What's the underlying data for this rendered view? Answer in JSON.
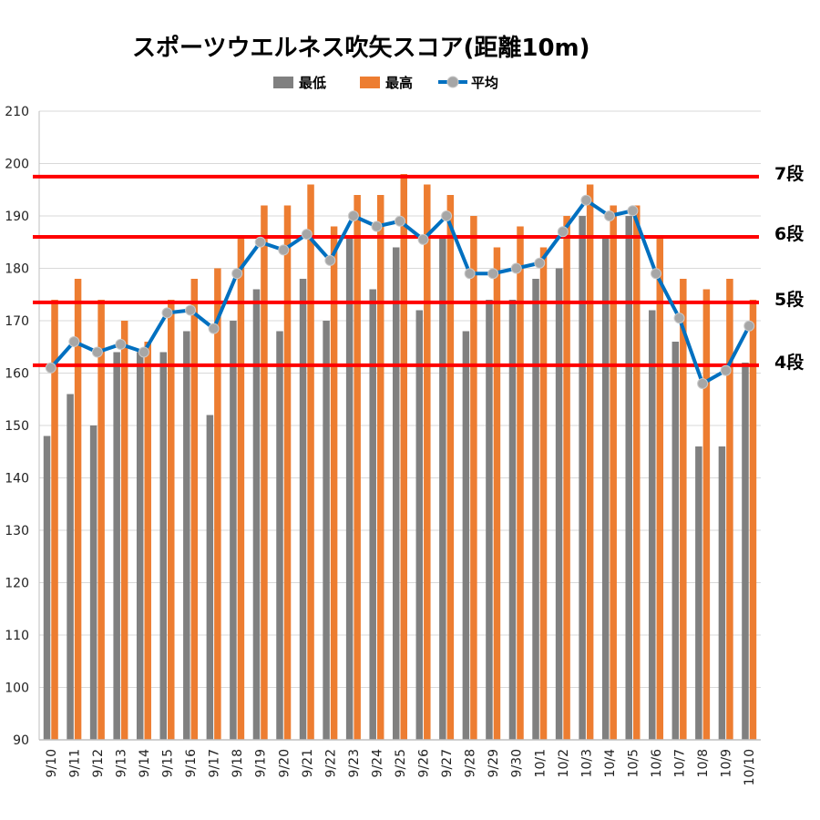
{
  "chart_data": {
    "type": "bar",
    "title": "スポーツウエルネス吹矢スコア(距離10m)",
    "categories": [
      "9/10",
      "9/11",
      "9/12",
      "9/13",
      "9/14",
      "9/15",
      "9/16",
      "9/17",
      "9/18",
      "9/19",
      "9/20",
      "9/21",
      "9/22",
      "9/23",
      "9/24",
      "9/25",
      "9/26",
      "9/27",
      "9/28",
      "9/29",
      "9/30",
      "10/1",
      "10/2",
      "10/3",
      "10/4",
      "10/5",
      "10/6",
      "10/7",
      "10/8",
      "10/9",
      "10/10"
    ],
    "series": [
      {
        "name": "最低",
        "kind": "bar",
        "color": "#808080",
        "values": [
          148,
          156,
          150,
          164,
          164,
          164,
          168,
          152,
          170,
          176,
          168,
          178,
          170,
          186,
          176,
          184,
          172,
          186,
          168,
          174,
          174,
          178,
          180,
          190,
          186,
          190,
          172,
          166,
          146,
          146,
          162
        ]
      },
      {
        "name": "最高",
        "kind": "bar",
        "color": "#ed7d31",
        "values": [
          174,
          178,
          174,
          170,
          166,
          174,
          178,
          180,
          186,
          192,
          192,
          196,
          188,
          194,
          194,
          198,
          196,
          194,
          190,
          184,
          188,
          184,
          190,
          196,
          192,
          192,
          186,
          178,
          176,
          178,
          174
        ]
      },
      {
        "name": "平均",
        "kind": "line",
        "color": "#0070c0",
        "marker_color": "#a6a6a6",
        "values": [
          161,
          166,
          164,
          165.5,
          164,
          171.5,
          172,
          168.5,
          179,
          185,
          183.5,
          186.5,
          181.5,
          190,
          188,
          189,
          185.5,
          190,
          179,
          179,
          180,
          181,
          187,
          193,
          190,
          191,
          179,
          170.5,
          158,
          160.5,
          169
        ]
      }
    ],
    "ylim": [
      90,
      210
    ],
    "yticks": [
      90,
      100,
      110,
      120,
      130,
      140,
      150,
      160,
      170,
      180,
      190,
      200,
      210
    ],
    "legend_position": "top",
    "grid": true,
    "reference_lines": [
      {
        "label": "7段",
        "value": 197.5,
        "color": "#ff0000"
      },
      {
        "label": "6段",
        "value": 186,
        "color": "#ff0000"
      },
      {
        "label": "5段",
        "value": 173.5,
        "color": "#ff0000"
      },
      {
        "label": "4段",
        "value": 161.5,
        "color": "#ff0000"
      }
    ]
  }
}
